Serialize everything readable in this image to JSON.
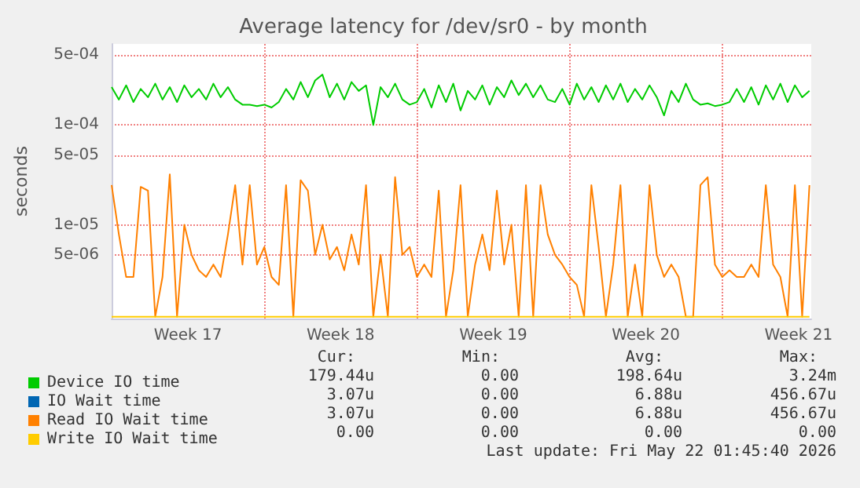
{
  "chart_data": {
    "type": "line",
    "title": "Average latency for /dev/sr0 - by month",
    "ylabel": "seconds",
    "log": "y",
    "grid": true,
    "legend": "bottom left",
    "marker": "none",
    "line_style": "solid",
    "x": [
      "2026-04-20T00:00",
      "2026-04-20T08:00",
      "2026-04-20T16:00",
      "2026-04-21T00:00",
      "2026-04-21T08:00",
      "2026-04-21T16:00",
      "2026-04-22T00:00",
      "2026-04-22T08:00",
      "2026-04-22T16:00",
      "2026-04-23T00:00",
      "2026-04-23T08:00",
      "2026-04-23T16:00",
      "2026-04-24T00:00",
      "2026-04-24T08:00",
      "2026-04-24T16:00",
      "2026-04-25T00:00",
      "2026-04-25T08:00",
      "2026-04-25T16:00",
      "2026-04-26T00:00",
      "2026-04-26T08:00",
      "2026-04-26T16:00",
      "2026-04-27T00:00",
      "2026-04-27T08:00",
      "2026-04-27T16:00",
      "2026-04-28T00:00",
      "2026-04-28T08:00",
      "2026-04-28T16:00",
      "2026-04-29T00:00",
      "2026-04-29T08:00",
      "2026-04-29T16:00",
      "2026-04-30T00:00",
      "2026-04-30T08:00",
      "2026-04-30T16:00",
      "2026-05-01T00:00",
      "2026-05-01T08:00",
      "2026-05-01T16:00",
      "2026-05-02T00:00",
      "2026-05-02T08:00",
      "2026-05-02T16:00",
      "2026-05-03T00:00",
      "2026-05-03T08:00",
      "2026-05-03T16:00",
      "2026-05-04T00:00",
      "2026-05-04T08:00",
      "2026-05-04T16:00",
      "2026-05-05T00:00",
      "2026-05-05T08:00",
      "2026-05-05T16:00",
      "2026-05-06T00:00",
      "2026-05-06T08:00",
      "2026-05-06T16:00",
      "2026-05-07T00:00",
      "2026-05-07T08:00",
      "2026-05-07T16:00",
      "2026-05-08T00:00",
      "2026-05-08T08:00",
      "2026-05-08T16:00",
      "2026-05-09T00:00",
      "2026-05-09T08:00",
      "2026-05-09T16:00",
      "2026-05-10T00:00",
      "2026-05-10T08:00",
      "2026-05-10T16:00",
      "2026-05-11T00:00",
      "2026-05-11T08:00",
      "2026-05-11T16:00",
      "2026-05-12T00:00",
      "2026-05-12T08:00",
      "2026-05-12T16:00",
      "2026-05-13T00:00",
      "2026-05-13T08:00",
      "2026-05-13T16:00",
      "2026-05-14T00:00",
      "2026-05-14T08:00",
      "2026-05-14T16:00",
      "2026-05-15T00:00",
      "2026-05-15T08:00",
      "2026-05-15T16:00",
      "2026-05-16T00:00",
      "2026-05-16T08:00",
      "2026-05-16T16:00",
      "2026-05-17T00:00",
      "2026-05-17T08:00",
      "2026-05-17T16:00",
      "2026-05-18T00:00",
      "2026-05-18T08:00",
      "2026-05-18T16:00",
      "2026-05-19T00:00",
      "2026-05-19T08:00",
      "2026-05-19T16:00",
      "2026-05-20T00:00",
      "2026-05-20T08:00",
      "2026-05-20T16:00",
      "2026-05-21T00:00",
      "2026-05-21T08:00",
      "2026-05-21T16:00",
      "2026-05-22T00:00"
    ],
    "series": [
      {
        "name": "Device IO time",
        "color": "#00cc00",
        "values": [
          0.00024,
          0.00018,
          0.00025,
          0.00017,
          0.00023,
          0.00019,
          0.00026,
          0.00018,
          0.00024,
          0.00017,
          0.00025,
          0.00019,
          0.00023,
          0.00018,
          0.00026,
          0.00019,
          0.00024,
          0.00018,
          0.00016,
          0.00016,
          0.000155,
          0.00016,
          0.00015,
          0.00017,
          0.00023,
          0.00018,
          0.00027,
          0.00019,
          0.00028,
          0.00032,
          0.00019,
          0.00026,
          0.00018,
          0.00027,
          0.00022,
          0.00025,
          0.0001,
          0.00024,
          0.00019,
          0.00026,
          0.00018,
          0.00016,
          0.00017,
          0.00023,
          0.00015,
          0.00025,
          0.00017,
          0.00026,
          0.00014,
          0.00022,
          0.00018,
          0.00025,
          0.00016,
          0.00024,
          0.00019,
          0.00028,
          0.0002,
          0.00026,
          0.00019,
          0.00025,
          0.00018,
          0.00017,
          0.00023,
          0.00016,
          0.00026,
          0.00018,
          0.00024,
          0.00017,
          0.00025,
          0.00018,
          0.00026,
          0.00017,
          0.00023,
          0.00018,
          0.00025,
          0.00019,
          0.000125,
          0.00022,
          0.00017,
          0.00026,
          0.00018,
          0.00016,
          0.000165,
          0.000155,
          0.00016,
          0.00017,
          0.00023,
          0.00017,
          0.00024,
          0.00016,
          0.00025,
          0.00018,
          0.00026,
          0.00017,
          0.00025,
          0.00019,
          0.00022
        ]
      },
      {
        "name": "IO Wait time",
        "color": "#0066b3",
        "values": [
          null,
          null,
          null,
          null,
          null,
          null,
          null,
          null,
          null,
          null,
          null,
          null,
          null,
          null,
          null,
          null,
          null,
          null,
          null,
          null,
          null,
          null,
          null,
          null,
          null,
          null,
          null,
          null,
          null,
          null,
          null,
          null,
          null,
          null,
          null,
          null,
          null,
          null,
          null,
          null,
          null,
          null,
          null,
          null,
          null,
          null,
          null,
          null,
          null,
          null,
          null,
          null,
          null,
          null,
          null,
          null,
          null,
          null,
          null,
          null,
          null,
          null,
          null,
          null,
          null,
          null,
          null,
          null,
          null,
          null,
          null,
          null,
          null,
          null,
          null,
          null,
          null,
          null,
          null,
          null,
          null,
          null,
          null,
          null,
          null,
          null,
          null,
          null,
          null,
          null,
          null,
          null,
          null,
          null,
          null,
          null,
          null
        ]
      },
      {
        "name": "Read IO Wait time",
        "color": "#ff8000",
        "values": [
          2.5e-05,
          8e-06,
          3e-06,
          3e-06,
          2.4e-05,
          2.2e-05,
          1.2e-06,
          3e-06,
          3.2e-05,
          1.2e-06,
          1e-05,
          5e-06,
          3.5e-06,
          3e-06,
          4e-06,
          3e-06,
          8e-06,
          2.5e-05,
          4e-06,
          2.5e-05,
          4e-06,
          6e-06,
          3e-06,
          2.5e-06,
          2.5e-05,
          1.2e-06,
          2.8e-05,
          2.2e-05,
          5e-06,
          1e-05,
          4.5e-06,
          6e-06,
          3.5e-06,
          8e-06,
          4e-06,
          2.5e-05,
          1.2e-06,
          5e-06,
          1.2e-06,
          3e-05,
          5e-06,
          6e-06,
          3e-06,
          4e-06,
          3e-06,
          2.2e-05,
          1.2e-06,
          3.5e-06,
          2.5e-05,
          1.2e-06,
          4e-06,
          8e-06,
          3.5e-06,
          2.2e-05,
          4e-06,
          1e-05,
          1.2e-06,
          2.5e-05,
          1.2e-06,
          2.5e-05,
          8e-06,
          5e-06,
          4e-06,
          3e-06,
          2.5e-06,
          1.2e-06,
          2.5e-05,
          6e-06,
          1.2e-06,
          4e-06,
          2.5e-05,
          1.2e-06,
          4e-06,
          1.2e-06,
          2.5e-05,
          5e-06,
          3e-06,
          4e-06,
          3e-06,
          1.2e-06,
          1.2e-06,
          2.5e-05,
          3e-05,
          4e-06,
          3e-06,
          3.5e-06,
          3e-06,
          3e-06,
          4e-06,
          3e-06,
          2.5e-05,
          4e-06,
          3e-06,
          1.2e-06,
          2.5e-05,
          1.2e-06,
          2.5e-05
        ]
      },
      {
        "name": "Write IO Wait time",
        "color": "#ffcc00",
        "values": [
          1.2e-06,
          1.2e-06,
          1.2e-06,
          1.2e-06,
          1.2e-06,
          1.2e-06,
          1.2e-06,
          1.2e-06,
          1.2e-06,
          1.2e-06,
          1.2e-06,
          1.2e-06,
          1.2e-06,
          1.2e-06,
          1.2e-06,
          1.2e-06,
          1.2e-06,
          1.2e-06,
          1.2e-06,
          1.2e-06,
          1.2e-06,
          1.2e-06,
          1.2e-06,
          1.2e-06,
          1.2e-06,
          1.2e-06,
          1.2e-06,
          1.2e-06,
          1.2e-06,
          1.2e-06,
          1.2e-06,
          1.2e-06,
          1.2e-06,
          1.2e-06,
          1.2e-06,
          1.2e-06,
          1.2e-06,
          1.2e-06,
          1.2e-06,
          1.2e-06,
          1.2e-06,
          1.2e-06,
          1.2e-06,
          1.2e-06,
          1.2e-06,
          1.2e-06,
          1.2e-06,
          1.2e-06,
          1.2e-06,
          1.2e-06,
          1.2e-06,
          1.2e-06,
          1.2e-06,
          1.2e-06,
          1.2e-06,
          1.2e-06,
          1.2e-06,
          1.2e-06,
          1.2e-06,
          1.2e-06,
          1.2e-06,
          1.2e-06,
          1.2e-06,
          1.2e-06,
          1.2e-06,
          1.2e-06,
          1.2e-06,
          1.2e-06,
          1.2e-06,
          1.2e-06,
          1.2e-06,
          1.2e-06,
          1.2e-06,
          1.2e-06,
          1.2e-06,
          1.2e-06,
          1.2e-06,
          1.2e-06,
          1.2e-06,
          1.2e-06,
          1.2e-06,
          1.2e-06,
          1.2e-06,
          1.2e-06,
          1.2e-06,
          1.2e-06,
          1.2e-06,
          1.2e-06,
          1.2e-06,
          1.2e-06,
          1.2e-06,
          1.2e-06,
          1.2e-06,
          1.2e-06,
          1.2e-06,
          1.2e-06,
          1.2e-06
        ]
      }
    ],
    "xlim": [
      "2026-04-20T00:00",
      "2026-05-22T02:00"
    ],
    "xticks": [
      {
        "value": "2026-04-20T00:00",
        "label": null
      },
      {
        "value": "2026-04-23T12:00",
        "label": "Week 17"
      },
      {
        "value": "2026-04-27T00:00",
        "label": null
      },
      {
        "value": "2026-04-30T12:00",
        "label": "Week 18"
      },
      {
        "value": "2026-05-04T00:00",
        "label": null
      },
      {
        "value": "2026-05-07T12:00",
        "label": "Week 19"
      },
      {
        "value": "2026-05-11T00:00",
        "label": null
      },
      {
        "value": "2026-05-14T12:00",
        "label": "Week 20"
      },
      {
        "value": "2026-05-18T00:00",
        "label": null
      },
      {
        "value": "2026-05-21T12:00",
        "label": "Week 21"
      }
    ],
    "ylim": [
      1.15e-06,
      0.00065
    ],
    "yticks": [
      {
        "value": 5e-06,
        "label": "5e-06"
      },
      {
        "value": 1e-05,
        "label": "1e-05"
      },
      {
        "value": 5e-05,
        "label": "5e-05"
      },
      {
        "value": 0.0001,
        "label": "1e-04"
      },
      {
        "value": 0.0005,
        "label": "5e-04"
      }
    ],
    "annotations": [
      "Cur:",
      "Min:",
      "Avg:",
      "Max:",
      "179.44u",
      "0.00",
      "198.64u",
      "3.24m",
      "3.07u",
      "0.00",
      "6.88u",
      "456.67u",
      "3.07u",
      "0.00",
      "6.88u",
      "456.67u",
      "0.00",
      "0.00",
      "0.00",
      "0.00",
      "Last update: Fri May 22 01:45:40 2026"
    ]
  }
}
